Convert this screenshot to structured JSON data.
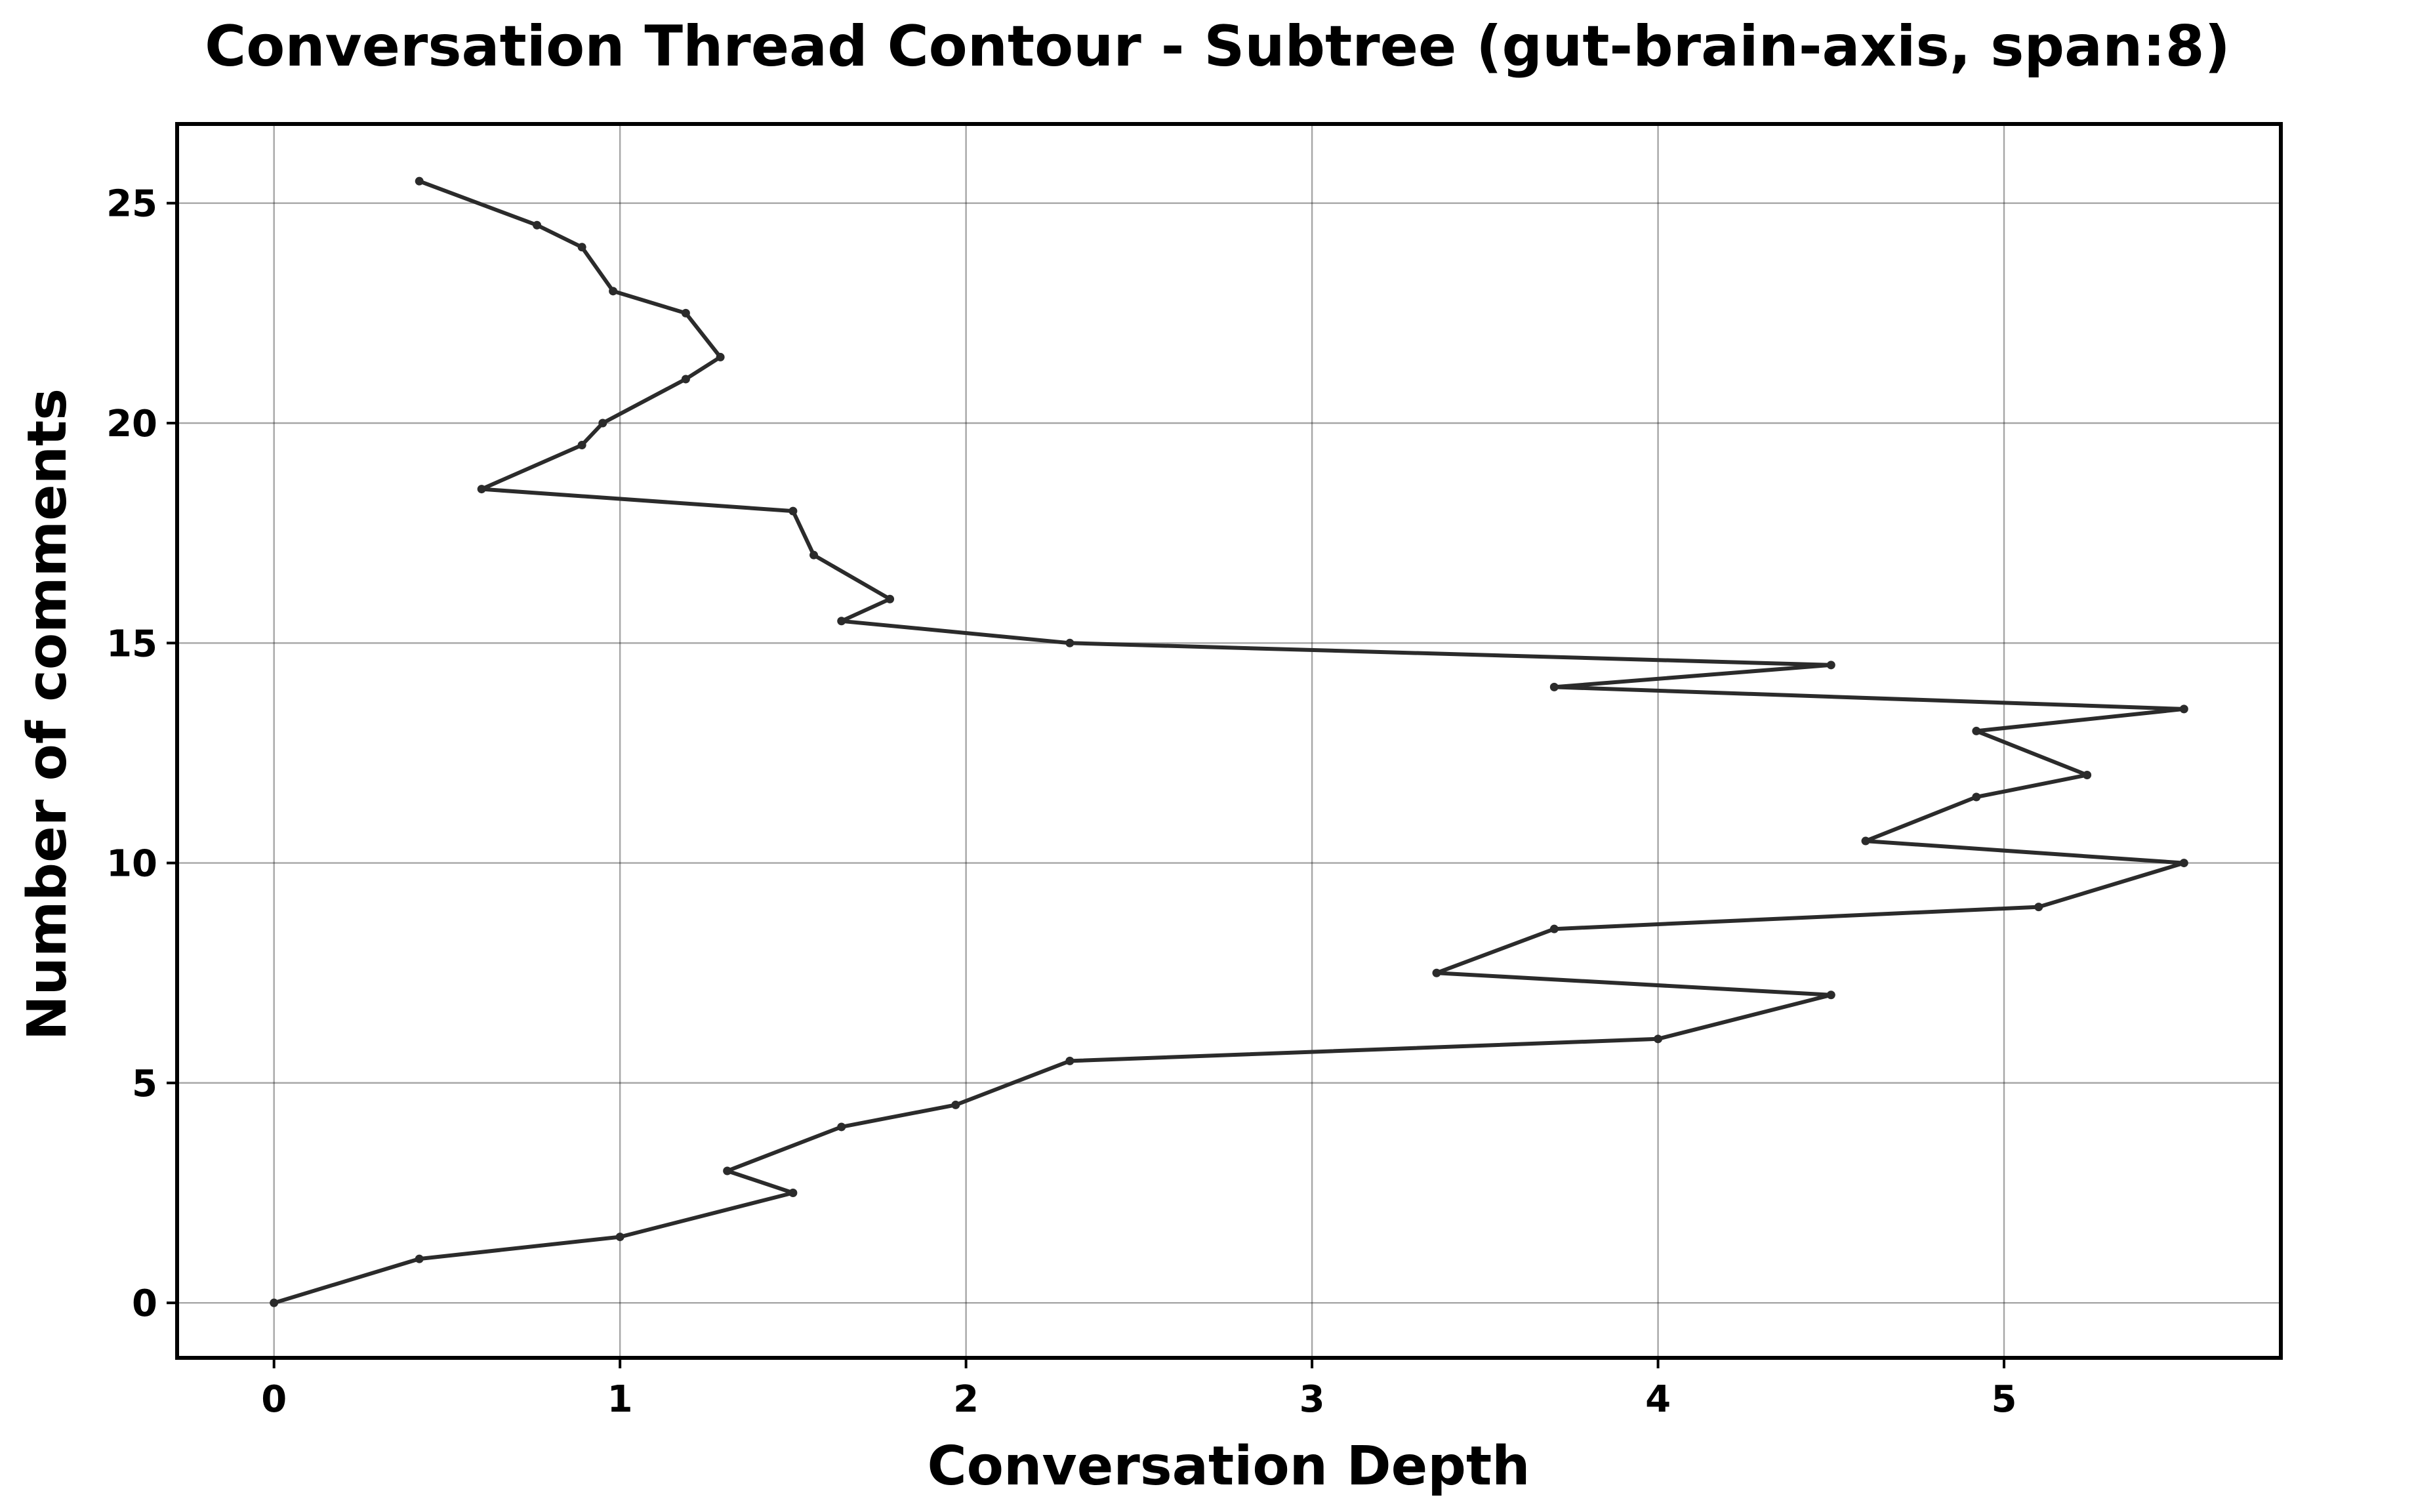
{
  "chart_data": {
    "type": "line",
    "title": "Conversation Thread Contour  - Subtree (gut-brain-axis, span:8)",
    "xlabel": "Conversation Depth",
    "ylabel": "Number of comments",
    "xlim": [
      -0.28,
      5.8
    ],
    "ylim": [
      -1.25,
      26.8
    ],
    "x_ticks": [
      0,
      1,
      2,
      3,
      4,
      5
    ],
    "y_ticks": [
      0,
      5,
      10,
      15,
      20,
      25
    ],
    "x_tick_labels": [
      "0",
      "1",
      "2",
      "3",
      "4",
      "5"
    ],
    "y_tick_labels": [
      "0",
      "5",
      "10",
      "15",
      "20",
      "25"
    ],
    "grid": true,
    "series_color": "#2b2b2b",
    "series": [
      {
        "x": [
          0,
          0.42,
          1.0,
          1.5,
          1.31,
          1.64,
          1.97,
          2.3,
          4.0,
          4.5,
          3.36,
          3.7,
          5.1,
          5.52,
          4.6,
          4.92,
          5.24,
          4.92,
          5.52,
          3.7,
          4.5,
          2.3,
          1.64,
          1.78,
          1.56,
          1.5,
          0.6,
          0.89,
          0.95,
          1.19,
          1.29,
          1.19,
          0.98,
          0.89,
          0.76,
          0.42
        ],
        "y": [
          0,
          1.0,
          1.5,
          2.5,
          3.0,
          4.0,
          4.5,
          5.5,
          6.0,
          7.0,
          7.5,
          8.5,
          9.0,
          10.0,
          10.5,
          11.5,
          12.0,
          13.0,
          13.5,
          14.0,
          14.5,
          15.0,
          15.5,
          16.0,
          17.0,
          18.0,
          18.5,
          19.5,
          20.0,
          21.0,
          21.5,
          22.5,
          23.0,
          24.0,
          24.5,
          25.5
        ]
      }
    ]
  }
}
